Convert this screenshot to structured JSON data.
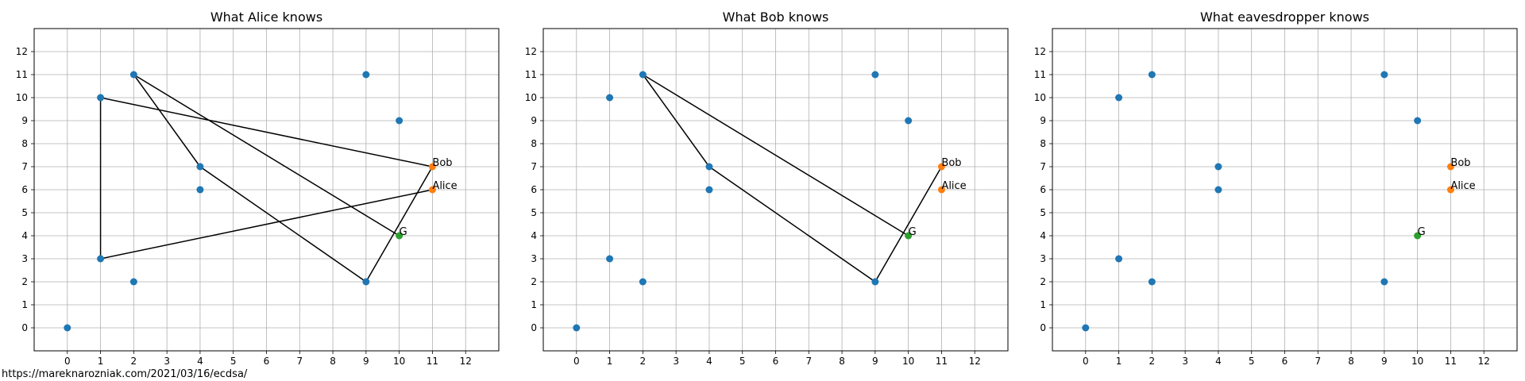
{
  "figure": {
    "footer_url": "https://mareknarozniak.com/2021/03/16/ecdsa/"
  },
  "colors": {
    "point": "#1f77b4",
    "party": "#ff7f0e",
    "generator": "#2ca02c",
    "edge": "#000000",
    "grid": "#b0b0b0"
  },
  "chart_data": [
    {
      "type": "scatter",
      "title": "What Alice knows",
      "xlim": [
        -1,
        13
      ],
      "ylim": [
        -1,
        13
      ],
      "xticks": [
        0,
        1,
        2,
        3,
        4,
        5,
        6,
        7,
        8,
        9,
        10,
        11,
        12
      ],
      "yticks": [
        0,
        1,
        2,
        3,
        4,
        5,
        6,
        7,
        8,
        9,
        10,
        11,
        12
      ],
      "grid": true,
      "points": [
        [
          0,
          0
        ],
        [
          1,
          3
        ],
        [
          1,
          10
        ],
        [
          2,
          2
        ],
        [
          2,
          11
        ],
        [
          4,
          6
        ],
        [
          4,
          7
        ],
        [
          9,
          2
        ],
        [
          9,
          11
        ],
        [
          10,
          9
        ]
      ],
      "special_points": [
        {
          "label": "Bob",
          "x": 11,
          "y": 7,
          "color": "#ff7f0e"
        },
        {
          "label": "Alice",
          "x": 11,
          "y": 6,
          "color": "#ff7f0e"
        },
        {
          "label": "G",
          "x": 10,
          "y": 4,
          "color": "#2ca02c"
        }
      ],
      "path": [
        [
          10,
          4
        ],
        [
          2,
          11
        ],
        [
          4,
          7
        ],
        [
          9,
          2
        ],
        [
          11,
          7
        ],
        [
          1,
          10
        ],
        [
          1,
          3
        ],
        [
          11,
          6
        ]
      ]
    },
    {
      "type": "scatter",
      "title": "What Bob knows",
      "xlim": [
        -1,
        13
      ],
      "ylim": [
        -1,
        13
      ],
      "xticks": [
        0,
        1,
        2,
        3,
        4,
        5,
        6,
        7,
        8,
        9,
        10,
        11,
        12
      ],
      "yticks": [
        0,
        1,
        2,
        3,
        4,
        5,
        6,
        7,
        8,
        9,
        10,
        11,
        12
      ],
      "grid": true,
      "points": [
        [
          0,
          0
        ],
        [
          1,
          3
        ],
        [
          1,
          10
        ],
        [
          2,
          2
        ],
        [
          2,
          11
        ],
        [
          4,
          6
        ],
        [
          4,
          7
        ],
        [
          9,
          2
        ],
        [
          9,
          11
        ],
        [
          10,
          9
        ]
      ],
      "special_points": [
        {
          "label": "Bob",
          "x": 11,
          "y": 7,
          "color": "#ff7f0e"
        },
        {
          "label": "Alice",
          "x": 11,
          "y": 6,
          "color": "#ff7f0e"
        },
        {
          "label": "G",
          "x": 10,
          "y": 4,
          "color": "#2ca02c"
        }
      ],
      "path": [
        [
          10,
          4
        ],
        [
          2,
          11
        ],
        [
          4,
          7
        ],
        [
          9,
          2
        ],
        [
          11,
          7
        ]
      ]
    },
    {
      "type": "scatter",
      "title": "What eavesdropper knows",
      "xlim": [
        -1,
        13
      ],
      "ylim": [
        -1,
        13
      ],
      "xticks": [
        0,
        1,
        2,
        3,
        4,
        5,
        6,
        7,
        8,
        9,
        10,
        11,
        12
      ],
      "yticks": [
        0,
        1,
        2,
        3,
        4,
        5,
        6,
        7,
        8,
        9,
        10,
        11,
        12
      ],
      "grid": true,
      "points": [
        [
          0,
          0
        ],
        [
          1,
          3
        ],
        [
          1,
          10
        ],
        [
          2,
          2
        ],
        [
          2,
          11
        ],
        [
          4,
          6
        ],
        [
          4,
          7
        ],
        [
          9,
          2
        ],
        [
          9,
          11
        ],
        [
          10,
          9
        ]
      ],
      "special_points": [
        {
          "label": "Bob",
          "x": 11,
          "y": 7,
          "color": "#ff7f0e"
        },
        {
          "label": "Alice",
          "x": 11,
          "y": 6,
          "color": "#ff7f0e"
        },
        {
          "label": "G",
          "x": 10,
          "y": 4,
          "color": "#2ca02c"
        }
      ],
      "path": []
    }
  ]
}
